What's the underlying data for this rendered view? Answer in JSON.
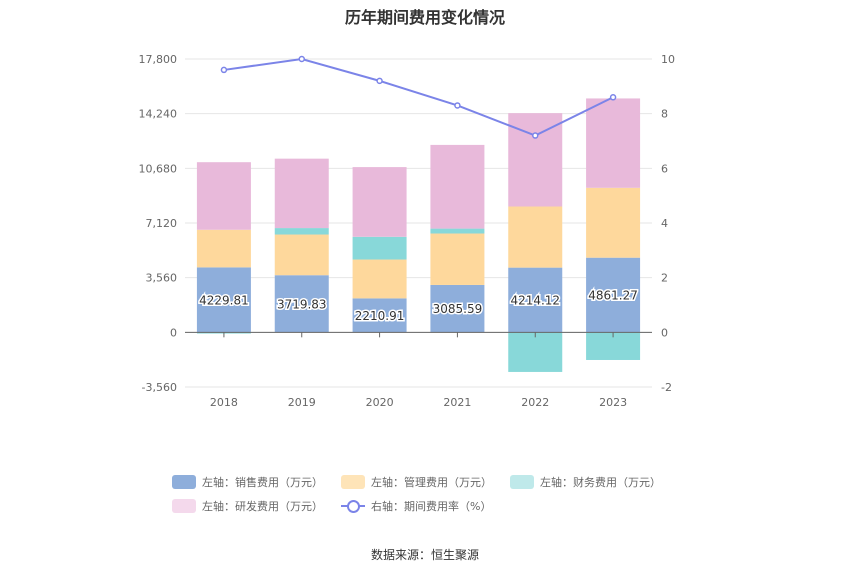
{
  "title": "历年期间费用变化情况",
  "source": "数据来源：恒生聚源",
  "chart_data": {
    "type": "bar",
    "stacked": true,
    "categories": [
      "2018",
      "2019",
      "2020",
      "2021",
      "2022",
      "2023"
    ],
    "left_axis": {
      "min": -3560,
      "max": 17800,
      "ticks": [
        "-3,560",
        "0",
        "3,560",
        "7,120",
        "10,680",
        "14,240",
        "17,800"
      ],
      "tick_values": [
        -3560,
        0,
        3560,
        7120,
        10680,
        14240,
        17800
      ]
    },
    "right_axis": {
      "min": -2,
      "max": 10,
      "ticks": [
        "-2",
        "0",
        "2",
        "4",
        "6",
        "8",
        "10"
      ],
      "tick_values": [
        -2,
        0,
        2,
        4,
        6,
        8,
        10
      ]
    },
    "series": [
      {
        "name": "左轴：销售费用（万元）",
        "axis": "left",
        "color": "#8eaedb",
        "values": [
          4229.81,
          3719.83,
          2210.91,
          3085.59,
          4214.12,
          4861.27
        ],
        "labels": [
          "4229.81",
          "3719.83",
          "2210.91",
          "3085.59",
          "4214.12",
          "4861.27"
        ]
      },
      {
        "name": "左轴：管理费用（万元）",
        "axis": "left",
        "color": "#fed89c",
        "values": [
          2450,
          2650,
          2530,
          3350,
          3980,
          4550
        ]
      },
      {
        "name": "左轴：财务费用（万元）",
        "axis": "left",
        "color": "#88d8d9",
        "values": [
          -80,
          420,
          1480,
          320,
          -2580,
          -1800
        ]
      },
      {
        "name": "左轴：研发费用（万元）",
        "axis": "left",
        "color": "#e8b9da",
        "values": [
          4400,
          4520,
          4540,
          5450,
          6080,
          5820
        ]
      },
      {
        "name": "右轴：期间费用率（%）",
        "axis": "right",
        "type": "line",
        "color": "#7b84e8",
        "values": [
          9.6,
          10.0,
          9.2,
          8.3,
          7.2,
          8.6
        ]
      }
    ],
    "legend_position": "bottom",
    "grid": true
  }
}
